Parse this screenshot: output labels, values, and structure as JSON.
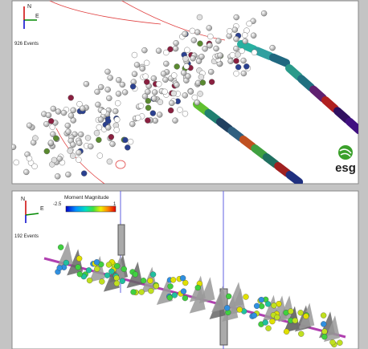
{
  "top_view": {
    "compass": {
      "north": "N",
      "east": "E"
    },
    "event_count": "926 Events",
    "logo": "esg"
  },
  "bottom_view": {
    "compass": {
      "north": "N",
      "east": "E"
    },
    "event_count": "192 Events",
    "colorbar": {
      "title": "Moment Magnitude",
      "min": -2.5,
      "max": 1
    }
  }
}
